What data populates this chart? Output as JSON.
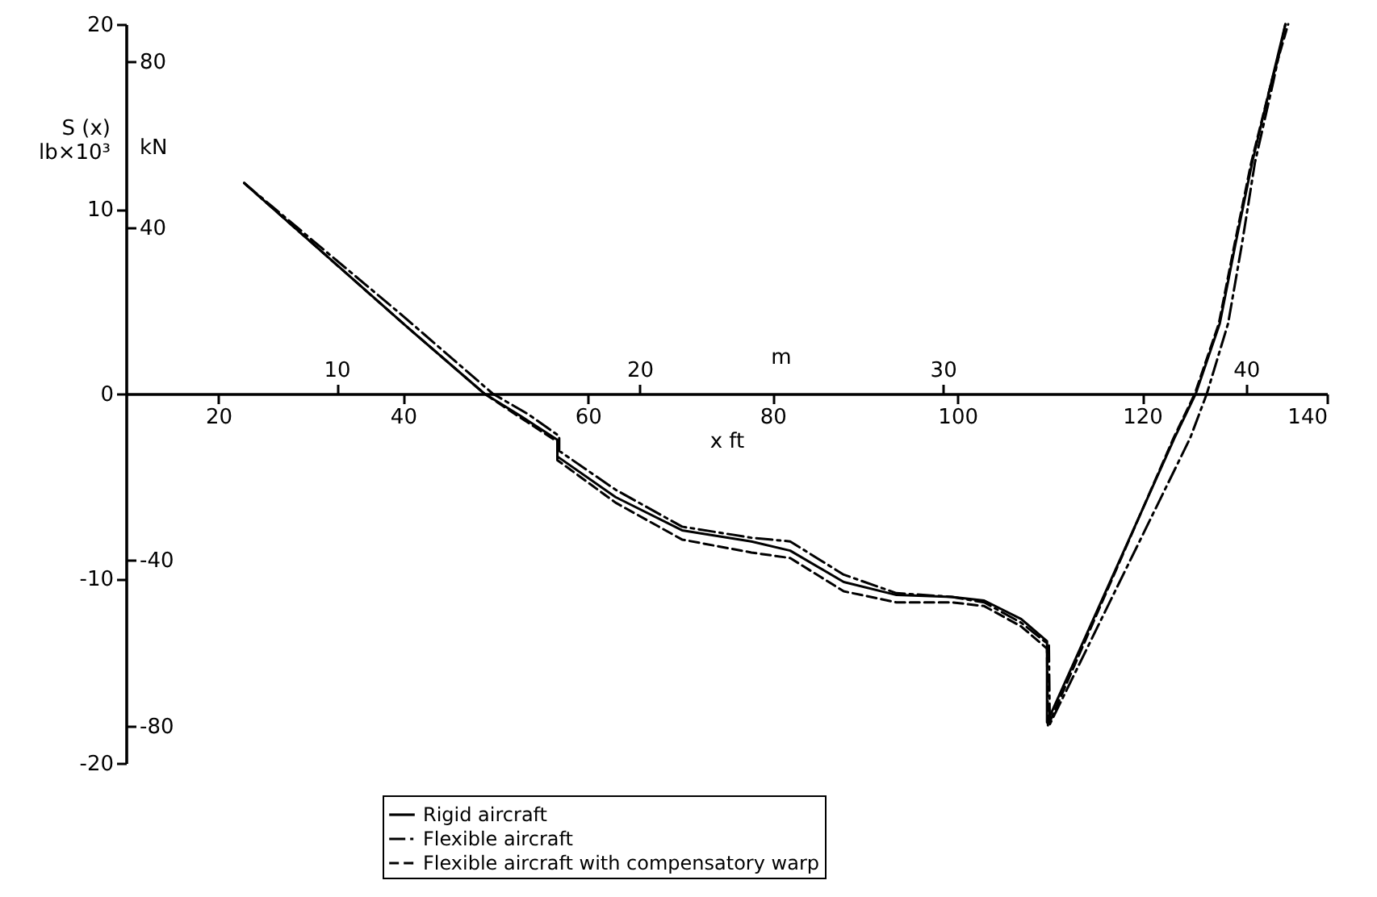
{
  "chart_data": {
    "type": "line",
    "xlabel": "x ft",
    "ylabel": "S (x) lb×10³",
    "y2label": "kN",
    "x2label": "m",
    "xlim": [
      10,
      140
    ],
    "xticks": [
      20,
      40,
      60,
      80,
      100,
      120,
      140
    ],
    "x2lim": [
      3.048,
      42.672
    ],
    "x2ticks": [
      10,
      20,
      30,
      40
    ],
    "ylim": [
      -20,
      20
    ],
    "yticks": [
      -20,
      -10,
      0,
      10,
      20
    ],
    "y2lim": [
      -88.96,
      88.96
    ],
    "y2ticks": [
      -80,
      -40,
      40,
      80
    ],
    "grid": false,
    "legend": "bottom",
    "series": [
      {
        "name": "Rigid aircraft",
        "color": "#000000",
        "line_style": "solid",
        "x": [
          22.8,
          40,
          48.8,
          52.7,
          56.7,
          56.7,
          63,
          70.2,
          77.7,
          81.9,
          87.7,
          93.4,
          99.4,
          102.9,
          106.9,
          109.7,
          109.7,
          123.5,
          125.8,
          128.4,
          130.1,
          131.9,
          134,
          135.5
        ],
        "values": [
          11.4,
          3.8,
          0,
          -1.2,
          -2.5,
          -3.4,
          -5.6,
          -7.4,
          -8.0,
          -8.5,
          -10.2,
          -10.9,
          -11.0,
          -11.2,
          -12.2,
          -13.4,
          -17.8,
          -2.4,
          0,
          3.8,
          8.1,
          12.5,
          16.9,
          20
        ]
      },
      {
        "name": "Flexible aircraft",
        "color": "#000000",
        "line_style": "dashdot",
        "x": [
          22.8,
          40,
          49.7,
          53.5,
          56.9,
          56.9,
          63,
          70.2,
          77.7,
          81.9,
          87.7,
          93.4,
          99.4,
          102.9,
          106.9,
          109.9,
          110,
          125.2,
          127,
          129.3,
          130.8,
          132.2,
          134.2,
          135.5
        ],
        "values": [
          11.4,
          4.2,
          0,
          -1.1,
          -2.3,
          -3.1,
          -5.2,
          -7.2,
          -7.8,
          -8.0,
          -9.8,
          -10.8,
          -11.0,
          -11.3,
          -12.4,
          -13.6,
          -17.9,
          -2.4,
          0,
          3.8,
          8.1,
          12.5,
          16.9,
          20
        ]
      },
      {
        "name": "Flexible aircraft with compensatory warp",
        "color": "#000000",
        "line_style": "dashed",
        "x": [
          22.8,
          40,
          48.8,
          52.7,
          56.7,
          56.7,
          63,
          70.2,
          77.7,
          81.9,
          87.7,
          93.4,
          99.4,
          102.9,
          106.9,
          109.7,
          109.8,
          123.4,
          125.7,
          128.3,
          130,
          131.8,
          134,
          135.8
        ],
        "values": [
          11.4,
          3.8,
          0,
          -1.3,
          -2.6,
          -3.6,
          -5.9,
          -7.9,
          -8.6,
          -8.9,
          -10.7,
          -11.3,
          -11.3,
          -11.5,
          -12.6,
          -13.8,
          -18.0,
          -2.4,
          0,
          3.8,
          8.1,
          12.5,
          16.9,
          20
        ]
      }
    ]
  }
}
